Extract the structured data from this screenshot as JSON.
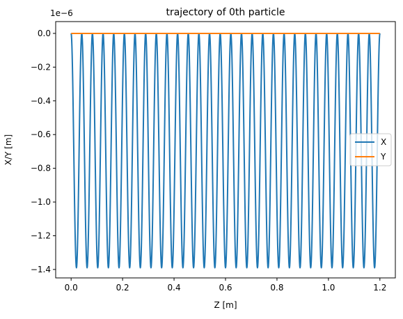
{
  "chart_data": {
    "type": "line",
    "title": "trajectory of 0th particle",
    "xlabel": "Z [m]",
    "ylabel": "X/Y [m]",
    "y_offset_label": "1e−6",
    "xlim": [
      -0.06,
      1.26
    ],
    "ylim": [
      -1.45e-06,
      7e-08
    ],
    "x_ticks": [
      {
        "value": 0.0,
        "label": "0.0"
      },
      {
        "value": 0.2,
        "label": "0.2"
      },
      {
        "value": 0.4,
        "label": "0.4"
      },
      {
        "value": 0.6,
        "label": "0.6"
      },
      {
        "value": 0.8,
        "label": "0.8"
      },
      {
        "value": 1.0,
        "label": "1.0"
      },
      {
        "value": 1.2,
        "label": "1.2"
      }
    ],
    "y_ticks": [
      {
        "value": 0.0,
        "label": "0.0"
      },
      {
        "value": -2e-07,
        "label": "−0.2"
      },
      {
        "value": -4e-07,
        "label": "−0.4"
      },
      {
        "value": -6e-07,
        "label": "−0.6"
      },
      {
        "value": -8e-07,
        "label": "−0.8"
      },
      {
        "value": -1e-06,
        "label": "−1.0"
      },
      {
        "value": -1.2e-06,
        "label": "−1.2"
      },
      {
        "value": -1.4e-06,
        "label": "−1.4"
      }
    ],
    "grid": false,
    "legend_position": "center-right",
    "series": [
      {
        "name": "X",
        "color": "#1f77b4",
        "shape": "oscillation",
        "z_start": 0.0,
        "z_end": 1.2,
        "periods": 29,
        "min": -1.39e-06,
        "max": 0.0
      },
      {
        "name": "Y",
        "color": "#ff7f0e",
        "shape": "constant",
        "z_start": 0.0,
        "z_end": 1.2,
        "value": 0.0
      }
    ]
  }
}
